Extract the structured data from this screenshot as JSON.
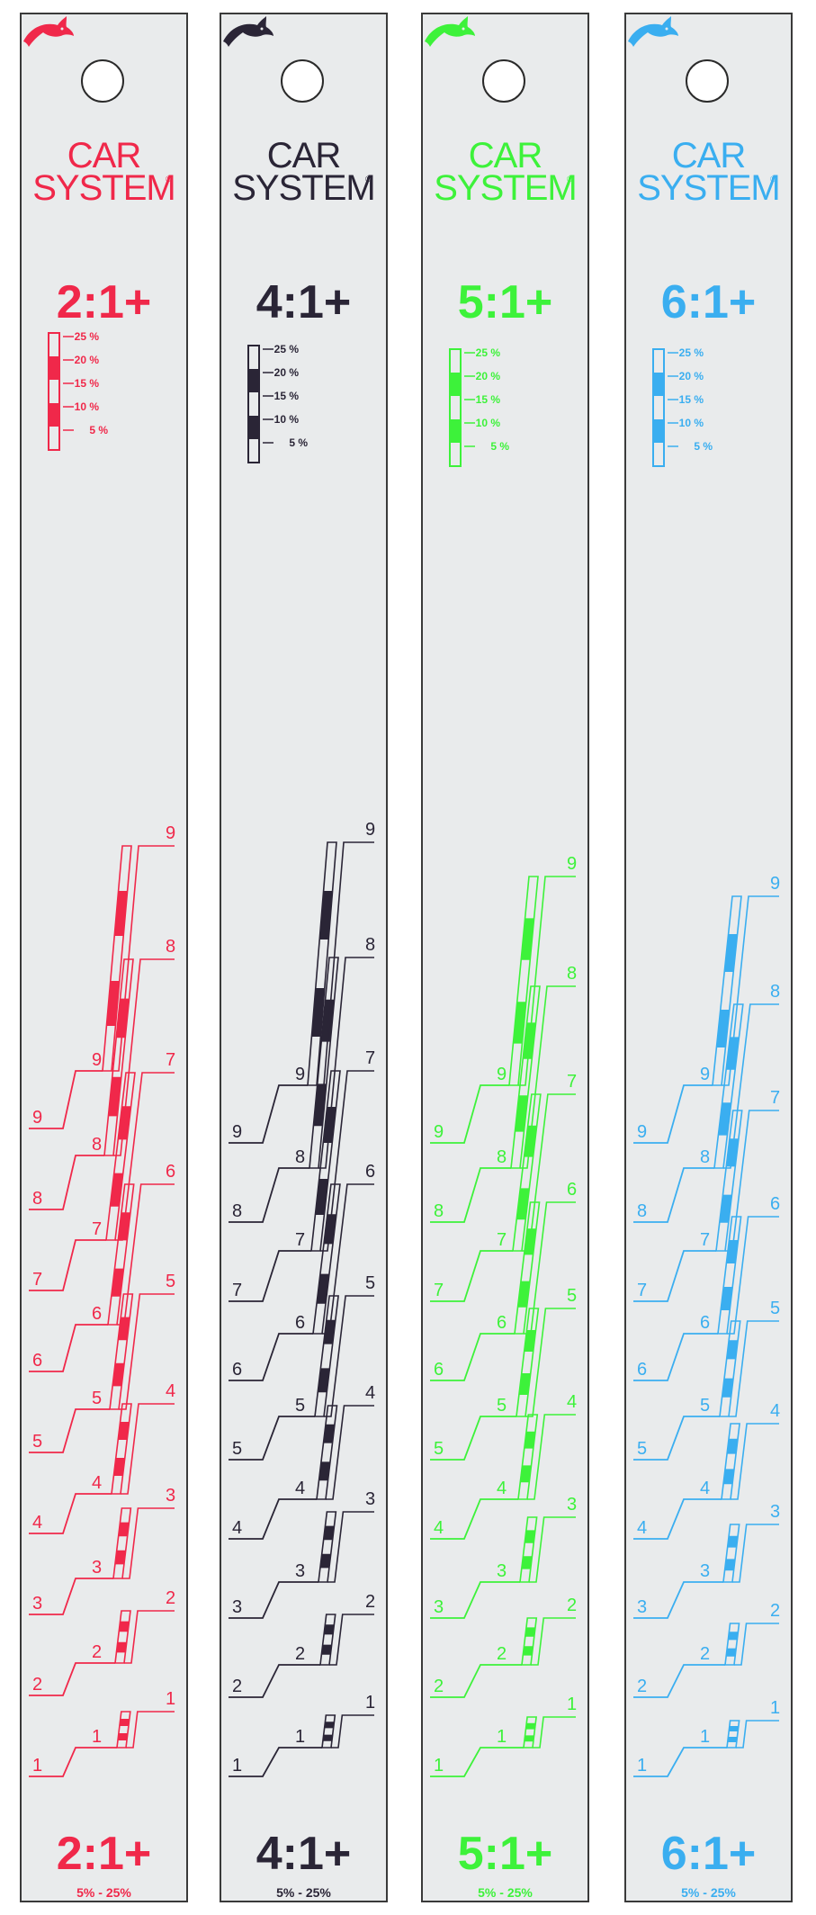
{
  "brand": {
    "line1": "CAR",
    "line2": "SYSTEM",
    "registered": "®"
  },
  "icons": {
    "hole": "hang-hole",
    "logo": "dolphin-icon"
  },
  "legend_percent_labels": [
    "25 %",
    "20 %",
    "15 %",
    "10 %",
    "5 %"
  ],
  "step_numbers": [
    "1",
    "2",
    "3",
    "4",
    "5",
    "6",
    "7",
    "8",
    "9"
  ],
  "strips": [
    {
      "ratio": "2:1+",
      "range": "5% - 25%",
      "color": "#f0284a"
    },
    {
      "ratio": "4:1+",
      "range": "5% - 25%",
      "color": "#2a2536"
    },
    {
      "ratio": "5:1+",
      "range": "5% - 25%",
      "color": "#3df23a"
    },
    {
      "ratio": "6:1+",
      "range": "5% - 25%",
      "color": "#3aaef0"
    }
  ]
}
